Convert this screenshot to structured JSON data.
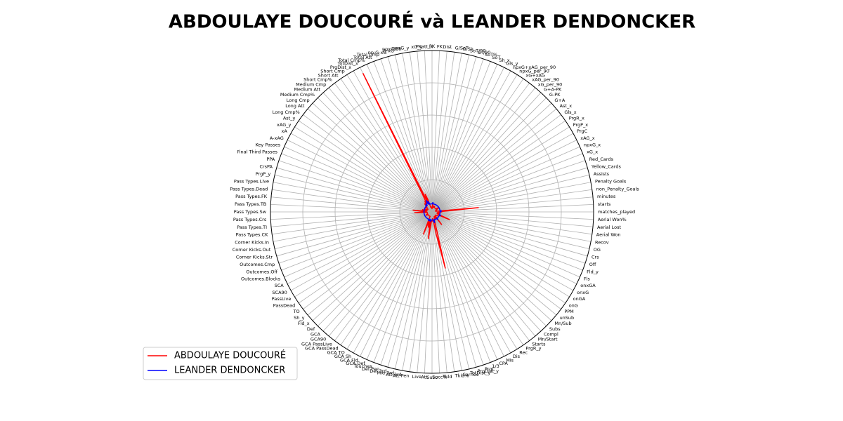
{
  "chart_data": {
    "type": "radar",
    "title": "ABDOULAYE DOUCOURÉ và LEANDER DENDONCKER",
    "categories": [
      "matches_played",
      "starts",
      "minutes",
      "non_Penalty_Goals",
      "Penalty Goals",
      "Assists",
      "Yellow_Cards",
      "Red_Cards",
      "xG_x",
      "npxG_x",
      "xAG_x",
      "PrgC",
      "PrgP_x",
      "PrgR_x",
      "Gls_x",
      "Ast_x",
      "G+A",
      "G-PK",
      "G+A-PK",
      "xG_per_90",
      "xAG_per_90",
      "xG+xAG",
      "npxG_per_90",
      "npxG+xAG_per_90",
      "Gls_y",
      "Sh_x",
      "SoT",
      "SoT%",
      "Sh/90",
      "SoT/90",
      "G/Sh",
      "G/SoT",
      "Dist",
      "FK",
      "PK",
      "PKatt_x",
      "xG_y",
      "npxG_y",
      "npxG/Sh",
      "G-xG",
      "np:G-xG",
      "Total Cmp",
      "Total Att",
      "Total Cmp%",
      "TotDist_x",
      "PrgDist_x",
      "Short Cmp",
      "Short Att",
      "Short Cmp%",
      "Medium Cmp",
      "Medium Att",
      "Medium Cmp%",
      "Long Cmp",
      "Long Att",
      "Long Cmp%",
      "Ast_y",
      "xAG_y",
      "xA",
      "A-xAG",
      "Key Passes",
      "Final Third Passes",
      "PPA",
      "CrsPA",
      "PrgP_y",
      "Pass Types.Live",
      "Pass Types.Dead",
      "Pass Types.FK",
      "Pass Types.TB",
      "Pass Types.Sw",
      "Pass Types.Crs",
      "Pass Types.TI",
      "Pass Types.CK",
      "Corner Kicks.In",
      "Corner Kicks.Out",
      "Corner Kicks.Str",
      "Outcomes.Cmp",
      "Outcomes.Off",
      "Outcomes.Blocks",
      "SCA",
      "SCA90",
      "PassLive",
      "PassDead",
      "TO",
      "Sh_y",
      "Fld_x",
      "Def",
      "GCA",
      "GCA90",
      "GCA PassLive",
      "GCA PassDead",
      "GCA TO",
      "GCA Sh",
      "GCA Fld",
      "GCA Def",
      "Touches",
      "Def Pen",
      "Def 3rd",
      "Mid 3rd",
      "Att 3rd",
      "Att Pen",
      "Live",
      "Att",
      "Succ",
      "Succ%",
      "Tkld",
      "Tkld%",
      "Carries",
      "TotDist_y",
      "PrgDist_y",
      "PrgC",
      "1/3",
      "CPA",
      "Mis",
      "Dis",
      "Rec",
      "PrgR_y",
      "Starts",
      "Mn/Start",
      "Compl",
      "Subs",
      "Mn/Sub",
      "unSub",
      "PPM",
      "onG",
      "onGA",
      "onxG",
      "onxGA",
      "Fls",
      "Fld_y",
      "Off",
      "Crs",
      "OG",
      "Recov",
      "Aerial Won",
      "Aerial Lost",
      "Aerial Won%"
    ],
    "series": [
      {
        "name": "ABDOULAYE DOUCOURÉ",
        "color": "#ff0000",
        "values": [
          0.06,
          0.06,
          0.29,
          0.03,
          0.02,
          0.03,
          0.03,
          0.02,
          0.03,
          0.03,
          0.03,
          0.04,
          0.05,
          0.05,
          0.03,
          0.03,
          0.03,
          0.03,
          0.03,
          0.03,
          0.03,
          0.03,
          0.03,
          0.03,
          0.03,
          0.04,
          0.03,
          0.04,
          0.03,
          0.03,
          0.03,
          0.03,
          0.06,
          0.03,
          0.02,
          0.02,
          0.03,
          0.03,
          0.03,
          0.03,
          0.03,
          0.08,
          0.12,
          0.05,
          0.96,
          0.1,
          0.07,
          0.08,
          0.05,
          0.06,
          0.07,
          0.05,
          0.04,
          0.05,
          0.05,
          0.03,
          0.03,
          0.03,
          0.03,
          0.04,
          0.05,
          0.04,
          0.03,
          0.06,
          0.06,
          0.03,
          0.12,
          0.04,
          0.04,
          0.11,
          0.03,
          0.03,
          0.03,
          0.03,
          0.03,
          0.03,
          0.03,
          0.03,
          0.04,
          0.04,
          0.04,
          0.03,
          0.03,
          0.03,
          0.03,
          0.03,
          0.03,
          0.03,
          0.03,
          0.03,
          0.03,
          0.03,
          0.03,
          0.03,
          0.15,
          0.06,
          0.08,
          0.1,
          0.05,
          0.17,
          0.08,
          0.05,
          0.06,
          0.05,
          0.04,
          0.05,
          0.14,
          0.36,
          0.06,
          0.05,
          0.04,
          0.03,
          0.04,
          0.05,
          0.04,
          0.03,
          0.1,
          0.03,
          0.03,
          0.03,
          0.03,
          0.03,
          0.04,
          0.04,
          0.04,
          0.04,
          0.04,
          0.12,
          0.05,
          0.04,
          0.03,
          0.04,
          0.05,
          0.03,
          0.05,
          0.04
        ]
      },
      {
        "name": "LEANDER DENDONCKER",
        "color": "#0000ff",
        "values": [
          0.05,
          0.05,
          0.06,
          0.05,
          0.05,
          0.05,
          0.05,
          0.05,
          0.05,
          0.05,
          0.05,
          0.05,
          0.05,
          0.05,
          0.05,
          0.05,
          0.05,
          0.05,
          0.05,
          0.05,
          0.05,
          0.05,
          0.05,
          0.05,
          0.05,
          0.05,
          0.05,
          0.05,
          0.05,
          0.05,
          0.05,
          0.05,
          0.06,
          0.05,
          0.05,
          0.05,
          0.05,
          0.05,
          0.05,
          0.05,
          0.05,
          0.06,
          0.07,
          0.05,
          0.08,
          0.06,
          0.06,
          0.06,
          0.05,
          0.05,
          0.06,
          0.05,
          0.05,
          0.05,
          0.05,
          0.05,
          0.05,
          0.05,
          0.05,
          0.05,
          0.05,
          0.05,
          0.05,
          0.05,
          0.05,
          0.05,
          0.05,
          0.05,
          0.05,
          0.05,
          0.05,
          0.05,
          0.05,
          0.05,
          0.05,
          0.05,
          0.05,
          0.05,
          0.05,
          0.05,
          0.05,
          0.05,
          0.05,
          0.05,
          0.05,
          0.05,
          0.05,
          0.05,
          0.05,
          0.05,
          0.05,
          0.05,
          0.05,
          0.05,
          0.06,
          0.05,
          0.05,
          0.06,
          0.05,
          0.06,
          0.05,
          0.05,
          0.05,
          0.05,
          0.05,
          0.05,
          0.06,
          0.07,
          0.05,
          0.05,
          0.05,
          0.05,
          0.05,
          0.05,
          0.05,
          0.05,
          0.06,
          0.05,
          0.05,
          0.05,
          0.05,
          0.05,
          0.05,
          0.05,
          0.05,
          0.05,
          0.05,
          0.06,
          0.05,
          0.05,
          0.05,
          0.05,
          0.05,
          0.05,
          0.05,
          0.05
        ]
      }
    ],
    "ylim": [
      0,
      1
    ],
    "yticks": [
      0.2,
      0.4,
      0.6,
      0.8
    ],
    "grid": true,
    "legend": "lower left"
  }
}
